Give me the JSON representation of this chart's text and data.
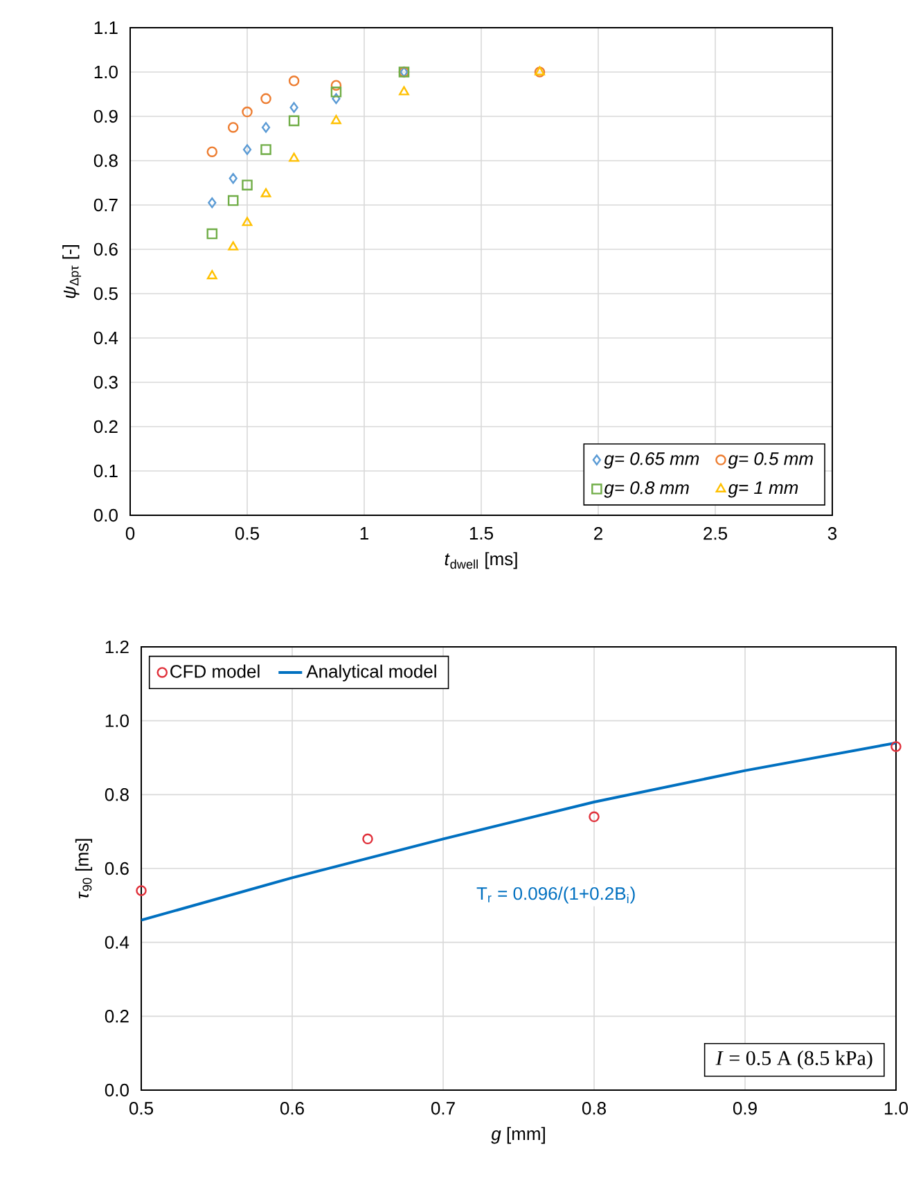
{
  "chart_data": [
    {
      "type": "scatter",
      "xlabel": "*t*$_{dwell}$ [ms]",
      "ylabel": "*ψ*$_{Δpτ}$ [-]",
      "x": [
        0.35,
        0.44,
        0.5,
        0.58,
        0.7,
        0.88,
        1.17,
        1.75
      ],
      "series": [
        {
          "name": "g= 0.65 mm",
          "color": "#5b9bd5",
          "marker": "diamond",
          "values": [
            0.705,
            0.76,
            0.825,
            0.875,
            0.92,
            0.94,
            1.0,
            null
          ]
        },
        {
          "name": "g= 0.5 mm",
          "color": "#ed7d31",
          "marker": "circle",
          "values": [
            0.82,
            0.875,
            0.91,
            0.94,
            0.98,
            0.97,
            1.0,
            1.0
          ]
        },
        {
          "name": "g= 0.8 mm",
          "color": "#70ad47",
          "marker": "square",
          "values": [
            0.635,
            0.71,
            0.745,
            0.825,
            0.89,
            0.955,
            1.0,
            null
          ]
        },
        {
          "name": "g= 1 mm",
          "color": "#ffc000",
          "marker": "triangle",
          "values": [
            0.54,
            0.605,
            0.66,
            0.725,
            0.805,
            0.89,
            0.955,
            1.0
          ]
        }
      ],
      "xlim": [
        0,
        3
      ],
      "xticks": [
        0,
        0.5,
        1,
        1.5,
        2,
        2.5,
        3
      ],
      "ylim": [
        0,
        1.1
      ],
      "yticks": [
        {
          "value": 0,
          "label": "0.0"
        },
        {
          "value": 0.1,
          "label": "0.1"
        },
        {
          "value": 0.2,
          "label": "0.2"
        },
        {
          "value": 0.3,
          "label": "0.3"
        },
        {
          "value": 0.4,
          "label": "0.4"
        },
        {
          "value": 0.5,
          "label": "0.5"
        },
        {
          "value": 0.6,
          "label": "0.6"
        },
        {
          "value": 0.7,
          "label": "0.7"
        },
        {
          "value": 0.8,
          "label": "0.8"
        },
        {
          "value": 0.9,
          "label": "0.9"
        },
        {
          "value": 1,
          "label": "1.0"
        },
        {
          "value": 1.1,
          "label": "1.1"
        }
      ],
      "grid": true,
      "legend": "bottom right"
    },
    {
      "type": "scatter",
      "xlabel": "*g* [mm]",
      "ylabel": "*τ*$_{90}$ [ms]",
      "series": [
        {
          "name": "CFD model",
          "type": "scatter",
          "color": "#e0303a",
          "marker": "circle",
          "x": [
            0.5,
            0.65,
            0.8,
            1.0
          ],
          "values": [
            0.54,
            0.68,
            0.74,
            0.93
          ]
        },
        {
          "name": "Analytical model",
          "type": "line",
          "color": "#0070c0",
          "marker": "none",
          "x": [
            0.5,
            0.6,
            0.7,
            0.8,
            0.9,
            1.0
          ],
          "values": [
            0.46,
            0.575,
            0.68,
            0.78,
            0.865,
            0.94
          ]
        }
      ],
      "xlim": [
        0.5,
        1.0
      ],
      "xticks": [
        {
          "value": 0.5,
          "label": "0.5"
        },
        {
          "value": 0.6,
          "label": "0.6"
        },
        {
          "value": 0.7,
          "label": "0.7"
        },
        {
          "value": 0.8,
          "label": "0.8"
        },
        {
          "value": 0.9,
          "label": "0.9"
        },
        {
          "value": 1.0,
          "label": "1.0"
        }
      ],
      "ylim": [
        0,
        1.2
      ],
      "yticks": [
        {
          "value": 0,
          "label": "0.0"
        },
        {
          "value": 0.2,
          "label": "0.2"
        },
        {
          "value": 0.4,
          "label": "0.4"
        },
        {
          "value": 0.6,
          "label": "0.6"
        },
        {
          "value": 0.8,
          "label": "0.8"
        },
        {
          "value": 1.0,
          "label": "1.0"
        },
        {
          "value": 1.2,
          "label": "1.2"
        }
      ],
      "annotations": [
        "T$_{r}$ = 0.096/(1+0.2B$_{i}$)",
        "*I* = 0.5 A (8.5 kPa)"
      ],
      "grid": true,
      "legend": "top left"
    }
  ]
}
